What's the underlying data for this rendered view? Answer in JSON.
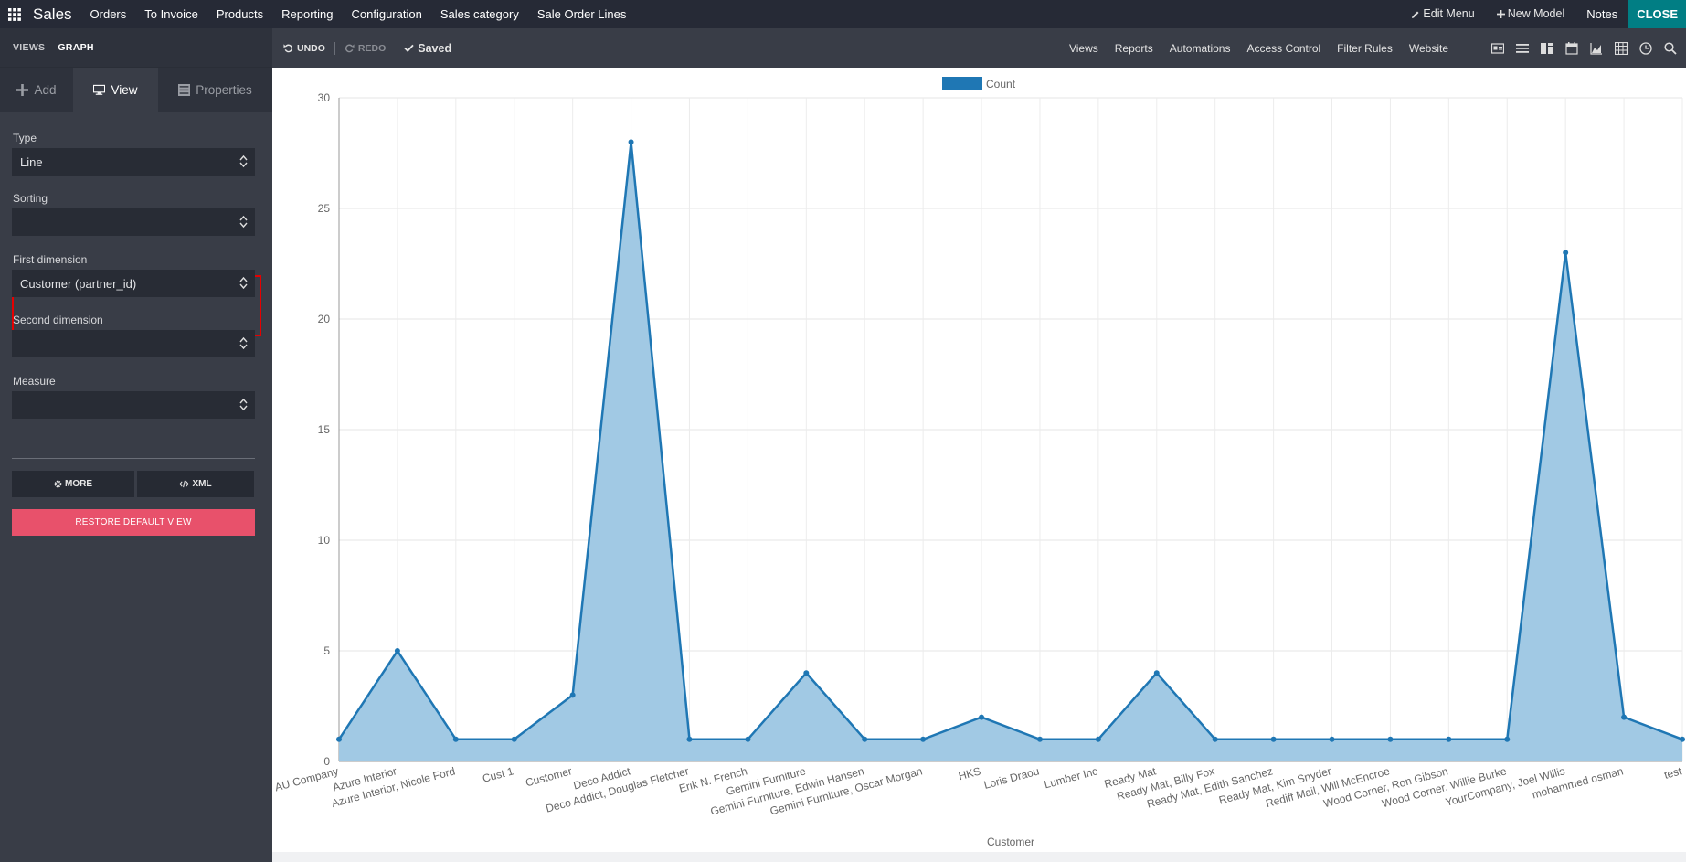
{
  "topbar": {
    "brand": "Sales",
    "menu": [
      "Orders",
      "To Invoice",
      "Products",
      "Reporting",
      "Configuration",
      "Sales category",
      "Sale Order Lines"
    ],
    "edit_menu": "Edit Menu",
    "new_model": "New Model",
    "notes": "Notes",
    "close": "CLOSE"
  },
  "sidebar": {
    "views": "VIEWS",
    "graph": "GRAPH",
    "tabs": [
      {
        "label": "Add",
        "icon": "plus-icon"
      },
      {
        "label": "View",
        "icon": "monitor-icon"
      },
      {
        "label": "Properties",
        "icon": "list-icon"
      }
    ],
    "fields": {
      "type": {
        "label": "Type",
        "value": "Line"
      },
      "sorting": {
        "label": "Sorting",
        "value": ""
      },
      "first_dimension": {
        "label": "First dimension",
        "value": "Customer (partner_id)"
      },
      "second_dimension": {
        "label": "Second dimension",
        "value": ""
      },
      "measure": {
        "label": "Measure",
        "value": ""
      }
    },
    "more": "MORE",
    "xml": "XML",
    "restore": "RESTORE DEFAULT VIEW"
  },
  "controlbar": {
    "undo": "UNDO",
    "redo": "REDO",
    "saved": "Saved",
    "links": [
      "Views",
      "Reports",
      "Automations",
      "Access Control",
      "Filter Rules",
      "Website"
    ],
    "view_icons": [
      "form-view-icon",
      "list-view-icon",
      "kanban-view-icon",
      "calendar-view-icon",
      "graph-view-icon",
      "pivot-view-icon",
      "activity-view-icon",
      "search-view-icon"
    ]
  },
  "colors": {
    "series_line": "#1f77b4",
    "series_fill": "#a1c9e4",
    "highlight": "#e60000",
    "restore": "#e8516b",
    "close": "#017e84"
  },
  "chart_data": {
    "type": "area",
    "legend": [
      "Count"
    ],
    "legend_position": "top-center",
    "xlabel": "Customer",
    "ylabel": "",
    "ylim": [
      0,
      30
    ],
    "yticks": [
      0,
      5,
      10,
      15,
      20,
      25,
      30
    ],
    "grid": true,
    "categories": [
      "AU Company",
      "Azure Interior",
      "Azure Interior, Nicole Ford",
      "Cust 1",
      "Customer",
      "Deco Addict",
      "Deco Addict, Douglas Fletcher",
      "Erik N. French",
      "Gemini Furniture",
      "Gemini Furniture, Edwin Hansen",
      "Gemini Furniture, Oscar Morgan",
      "HKS",
      "Loris Draou",
      "Lumber Inc",
      "Ready Mat",
      "Ready Mat, Billy Fox",
      "Ready Mat, Edith Sanchez",
      "Ready Mat, Kim Snyder",
      "Rediff Mail, Will McEncroe",
      "Wood Corner, Ron Gibson",
      "Wood Corner, Willie Burke",
      "YourCompany, Joel Willis",
      "mohammed osman",
      "test"
    ],
    "series": [
      {
        "name": "Count",
        "values": [
          1,
          5,
          1,
          1,
          3,
          28,
          1,
          1,
          4,
          1,
          1,
          2,
          1,
          1,
          4,
          1,
          1,
          1,
          1,
          1,
          1,
          23,
          2,
          1
        ]
      }
    ]
  }
}
